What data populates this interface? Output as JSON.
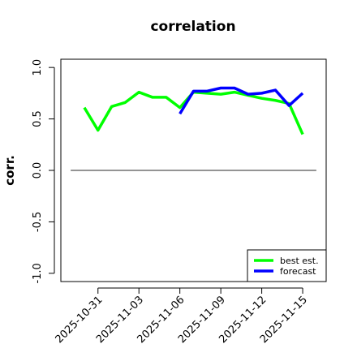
{
  "chart_data": {
    "type": "line",
    "title": "correlation",
    "y_label": "corr.",
    "x": [
      "2025-10-30",
      "2025-10-31",
      "2025-11-01",
      "2025-11-02",
      "2025-11-03",
      "2025-11-04",
      "2025-11-05",
      "2025-11-06",
      "2025-11-07",
      "2025-11-08",
      "2025-11-09",
      "2025-11-10",
      "2025-11-11",
      "2025-11-12",
      "2025-11-13",
      "2025-11-14",
      "2025-11-15"
    ],
    "series": [
      {
        "name": "best est.",
        "color": "#00ff00",
        "values": [
          0.61,
          0.39,
          0.62,
          0.66,
          0.76,
          0.71,
          0.71,
          0.61,
          0.76,
          0.75,
          0.74,
          0.76,
          0.73,
          0.7,
          0.68,
          0.65,
          0.35
        ]
      },
      {
        "name": "forecast",
        "color": "#0000ff",
        "values": [
          null,
          null,
          null,
          null,
          null,
          null,
          null,
          0.55,
          0.77,
          0.77,
          0.8,
          0.8,
          0.74,
          0.75,
          0.78,
          0.63,
          0.75
        ]
      }
    ],
    "xlim": [
      "2025-10-29",
      "2025-11-16"
    ],
    "ylim": [
      -1,
      1
    ],
    "axis_padding": 0.04,
    "xticks": [
      "2025-10-31",
      "2025-11-03",
      "2025-11-06",
      "2025-11-09",
      "2025-11-12",
      "2025-11-15"
    ],
    "xtick_colors": [
      "#000000",
      "#000000",
      "#228b22",
      "#000000",
      "#000000",
      "#000000"
    ],
    "yticks": [
      {
        "value": -1,
        "label": "-1.0"
      },
      {
        "value": -0.5,
        "label": "-0.5"
      },
      {
        "value": 0,
        "label": "0.0"
      },
      {
        "value": 0.5,
        "label": "0.5"
      },
      {
        "value": 1,
        "label": "1.0"
      }
    ],
    "reference_line": 0,
    "reference_color": "#555555",
    "legend": "bottom right"
  }
}
